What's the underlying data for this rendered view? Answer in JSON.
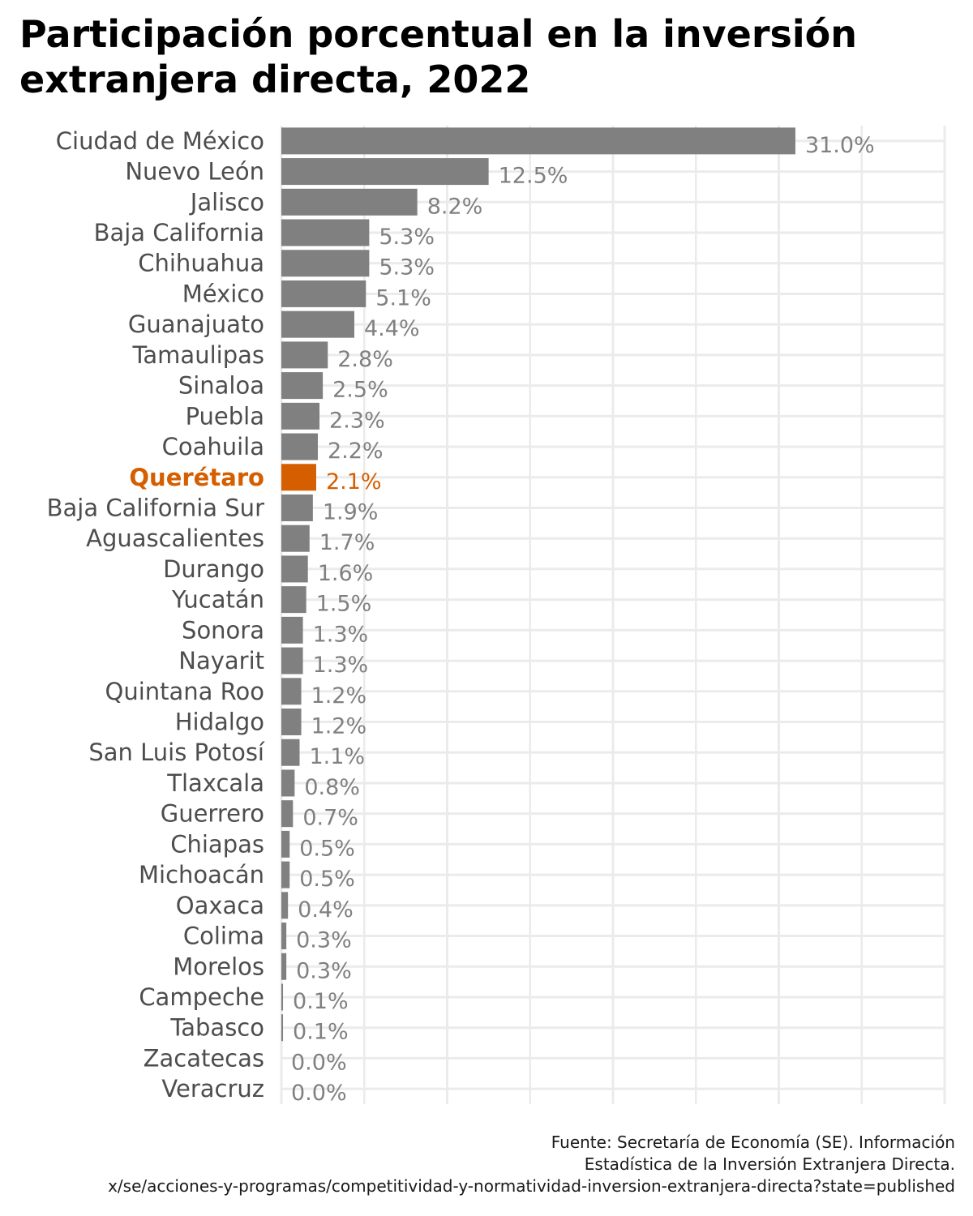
{
  "colors": {
    "bar": "#808080",
    "highlight": "#d55e00",
    "label": "#4d4d4d",
    "value": "#808080",
    "grid": "#ebebeb"
  },
  "chart_data": {
    "type": "bar",
    "orientation": "horizontal",
    "title": "Participación porcentual en la inversión extranjera directa, 2022",
    "xlabel": "",
    "ylabel": "",
    "xlim": [
      0,
      40
    ],
    "grid": true,
    "highlight": "Querétaro",
    "categories": [
      "Ciudad de México",
      "Nuevo León",
      "Jalisco",
      "Baja California",
      "Chihuahua",
      "México",
      "Guanajuato",
      "Tamaulipas",
      "Sinaloa",
      "Puebla",
      "Coahuila",
      "Querétaro",
      "Baja California Sur",
      "Aguascalientes",
      "Durango",
      "Yucatán",
      "Sonora",
      "Nayarit",
      "Quintana Roo",
      "Hidalgo",
      "San Luis Potosí",
      "Tlaxcala",
      "Guerrero",
      "Chiapas",
      "Michoacán",
      "Oaxaca",
      "Colima",
      "Morelos",
      "Campeche",
      "Tabasco",
      "Zacatecas",
      "Veracruz"
    ],
    "values": [
      31.0,
      12.5,
      8.2,
      5.3,
      5.3,
      5.1,
      4.4,
      2.8,
      2.5,
      2.3,
      2.2,
      2.1,
      1.9,
      1.7,
      1.6,
      1.5,
      1.3,
      1.3,
      1.2,
      1.2,
      1.1,
      0.8,
      0.7,
      0.5,
      0.5,
      0.4,
      0.3,
      0.3,
      0.1,
      0.1,
      0.0,
      0.0
    ],
    "value_labels": [
      "31.0%",
      "12.5%",
      "8.2%",
      "5.3%",
      "5.3%",
      "5.1%",
      "4.4%",
      "2.8%",
      "2.5%",
      "2.3%",
      "2.2%",
      "2.1%",
      "1.9%",
      "1.7%",
      "1.6%",
      "1.5%",
      "1.3%",
      "1.3%",
      "1.2%",
      "1.2%",
      "1.1%",
      "0.8%",
      "0.7%",
      "0.5%",
      "0.5%",
      "0.4%",
      "0.3%",
      "0.3%",
      "0.1%",
      "0.1%",
      "0.0%",
      "0.0%"
    ]
  },
  "caption": {
    "line1": "Fuente: Secretaría de Economía (SE). Información",
    "line2": "Estadística de la Inversión Extranjera Directa.",
    "line3": "x/se/acciones-y-programas/competitividad-y-normatividad-inversion-extranjera-directa?state=published"
  }
}
